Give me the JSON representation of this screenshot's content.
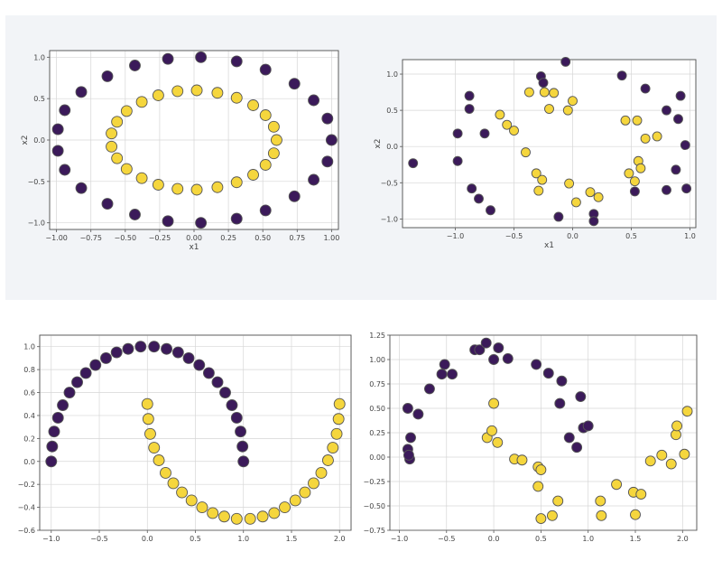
{
  "colors": {
    "class0": "#3b1a5a",
    "class1": "#f5d63d"
  },
  "chart_data": [
    {
      "type": "scatter",
      "title": "",
      "xlabel": "x1",
      "ylabel": "x2",
      "xlim": [
        -1.05,
        1.05
      ],
      "ylim": [
        -1.08,
        1.08
      ],
      "xticks": [
        -1.0,
        -0.75,
        -0.5,
        -0.25,
        0.0,
        0.25,
        0.5,
        0.75,
        1.0
      ],
      "yticks": [
        -1.0,
        -0.5,
        0.0,
        0.5,
        1.0
      ],
      "xtick_labels": [
        "−1.00",
        "−0.75",
        "−0.50",
        "−0.25",
        "0.00",
        "0.25",
        "0.50",
        "0.75",
        "1.00"
      ],
      "ytick_labels": [
        "−1.0",
        "−0.5",
        "0.0",
        "0.5",
        "1.0"
      ],
      "grid": true,
      "series": [
        {
          "class": 0,
          "points": [
            [
              1.0,
              0.0
            ],
            [
              0.97,
              0.26
            ],
            [
              0.87,
              0.48
            ],
            [
              0.73,
              0.68
            ],
            [
              0.52,
              0.85
            ],
            [
              0.31,
              0.95
            ],
            [
              0.05,
              1.0
            ],
            [
              -0.19,
              0.98
            ],
            [
              -0.43,
              0.9
            ],
            [
              -0.63,
              0.77
            ],
            [
              -0.82,
              0.58
            ],
            [
              -0.94,
              0.36
            ],
            [
              -0.99,
              0.13
            ],
            [
              -0.99,
              -0.13
            ],
            [
              -0.94,
              -0.36
            ],
            [
              -0.82,
              -0.58
            ],
            [
              -0.63,
              -0.77
            ],
            [
              -0.43,
              -0.9
            ],
            [
              -0.19,
              -0.98
            ],
            [
              0.05,
              -1.0
            ],
            [
              0.31,
              -0.95
            ],
            [
              0.52,
              -0.85
            ],
            [
              0.73,
              -0.68
            ],
            [
              0.87,
              -0.48
            ],
            [
              0.97,
              -0.26
            ]
          ]
        },
        {
          "class": 1,
          "points": [
            [
              0.6,
              0.0
            ],
            [
              0.58,
              0.16
            ],
            [
              0.52,
              0.3
            ],
            [
              0.43,
              0.42
            ],
            [
              0.31,
              0.51
            ],
            [
              0.17,
              0.57
            ],
            [
              0.02,
              0.6
            ],
            [
              -0.12,
              0.59
            ],
            [
              -0.26,
              0.54
            ],
            [
              -0.38,
              0.46
            ],
            [
              -0.49,
              0.35
            ],
            [
              -0.56,
              0.22
            ],
            [
              -0.6,
              0.08
            ],
            [
              -0.6,
              -0.08
            ],
            [
              -0.56,
              -0.22
            ],
            [
              -0.49,
              -0.35
            ],
            [
              -0.38,
              -0.46
            ],
            [
              -0.26,
              -0.54
            ],
            [
              -0.12,
              -0.59
            ],
            [
              0.02,
              -0.6
            ],
            [
              0.17,
              -0.57
            ],
            [
              0.31,
              -0.51
            ],
            [
              0.43,
              -0.42
            ],
            [
              0.52,
              -0.3
            ],
            [
              0.58,
              -0.16
            ]
          ]
        }
      ]
    },
    {
      "type": "scatter",
      "title": "",
      "xlabel": "x1",
      "ylabel": "x2",
      "xlim": [
        -1.45,
        1.05
      ],
      "ylim": [
        -1.12,
        1.2
      ],
      "xticks": [
        -1.0,
        -0.5,
        0.0,
        0.5,
        1.0
      ],
      "yticks": [
        -1.0,
        -0.5,
        0.0,
        0.5,
        1.0
      ],
      "xtick_labels": [
        "−1.0",
        "−0.5",
        "0.0",
        "0.5",
        "1.0"
      ],
      "ytick_labels": [
        "−1.0",
        "−0.5",
        "0.0",
        "0.5",
        "1.0"
      ],
      "grid": true,
      "series": [
        {
          "class": 0,
          "points": [
            [
              -1.36,
              -0.23
            ],
            [
              -0.98,
              0.18
            ],
            [
              -0.98,
              -0.2
            ],
            [
              -0.88,
              0.7
            ],
            [
              -0.88,
              0.52
            ],
            [
              -0.86,
              -0.58
            ],
            [
              -0.8,
              -0.72
            ],
            [
              -0.75,
              0.18
            ],
            [
              -0.7,
              -0.88
            ],
            [
              -0.27,
              0.97
            ],
            [
              -0.25,
              0.88
            ],
            [
              -0.12,
              -0.97
            ],
            [
              -0.06,
              1.17
            ],
            [
              0.18,
              -0.93
            ],
            [
              0.18,
              -1.03
            ],
            [
              0.42,
              0.98
            ],
            [
              0.53,
              -0.62
            ],
            [
              0.62,
              0.8
            ],
            [
              0.8,
              -0.6
            ],
            [
              0.8,
              0.5
            ],
            [
              0.88,
              -0.32
            ],
            [
              0.9,
              0.38
            ],
            [
              0.92,
              0.7
            ],
            [
              0.96,
              0.02
            ],
            [
              0.97,
              -0.58
            ]
          ]
        },
        {
          "class": 1,
          "points": [
            [
              -0.62,
              0.44
            ],
            [
              -0.56,
              0.3
            ],
            [
              -0.5,
              0.22
            ],
            [
              -0.4,
              -0.08
            ],
            [
              -0.37,
              0.75
            ],
            [
              -0.31,
              -0.37
            ],
            [
              -0.29,
              -0.61
            ],
            [
              -0.26,
              -0.46
            ],
            [
              -0.24,
              0.75
            ],
            [
              -0.2,
              0.52
            ],
            [
              -0.16,
              0.74
            ],
            [
              -0.04,
              0.5
            ],
            [
              -0.03,
              -0.51
            ],
            [
              0.0,
              0.63
            ],
            [
              0.03,
              -0.77
            ],
            [
              0.15,
              -0.63
            ],
            [
              0.22,
              -0.7
            ],
            [
              0.45,
              0.36
            ],
            [
              0.48,
              -0.37
            ],
            [
              0.53,
              -0.48
            ],
            [
              0.55,
              0.36
            ],
            [
              0.56,
              -0.2
            ],
            [
              0.58,
              -0.3
            ],
            [
              0.62,
              0.11
            ],
            [
              0.72,
              0.14
            ]
          ]
        }
      ]
    },
    {
      "type": "scatter",
      "title": "",
      "xlabel": "",
      "ylabel": "",
      "xlim": [
        -1.12,
        2.12
      ],
      "ylim": [
        -0.6,
        1.1
      ],
      "xticks": [
        -1.0,
        -0.5,
        0.0,
        0.5,
        1.0,
        1.5,
        2.0
      ],
      "yticks": [
        -0.6,
        -0.4,
        -0.2,
        0.0,
        0.2,
        0.4,
        0.6,
        0.8,
        1.0
      ],
      "xtick_labels": [
        "−1.0",
        "−0.5",
        "0.0",
        "0.5",
        "1.0",
        "1.5",
        "2.0"
      ],
      "ytick_labels": [
        "−0.6",
        "−0.4",
        "−0.2",
        "0.0",
        "0.2",
        "0.4",
        "0.6",
        "0.8",
        "1.0"
      ],
      "grid": true,
      "series": [
        {
          "class": 0,
          "points": [
            [
              -1.0,
              0.0
            ],
            [
              -0.99,
              0.13
            ],
            [
              -0.97,
              0.26
            ],
            [
              -0.93,
              0.38
            ],
            [
              -0.88,
              0.49
            ],
            [
              -0.81,
              0.6
            ],
            [
              -0.73,
              0.69
            ],
            [
              -0.64,
              0.77
            ],
            [
              -0.54,
              0.84
            ],
            [
              -0.43,
              0.9
            ],
            [
              -0.32,
              0.95
            ],
            [
              -0.2,
              0.98
            ],
            [
              -0.07,
              1.0
            ],
            [
              0.07,
              1.0
            ],
            [
              0.2,
              0.98
            ],
            [
              0.32,
              0.95
            ],
            [
              0.43,
              0.9
            ],
            [
              0.54,
              0.84
            ],
            [
              0.64,
              0.77
            ],
            [
              0.73,
              0.69
            ],
            [
              0.81,
              0.6
            ],
            [
              0.88,
              0.49
            ],
            [
              0.93,
              0.38
            ],
            [
              0.97,
              0.26
            ],
            [
              0.99,
              0.13
            ],
            [
              1.0,
              0.0
            ]
          ]
        },
        {
          "class": 1,
          "points": [
            [
              0.0,
              0.5
            ],
            [
              0.01,
              0.37
            ],
            [
              0.03,
              0.24
            ],
            [
              0.07,
              0.12
            ],
            [
              0.12,
              0.01
            ],
            [
              0.19,
              -0.1
            ],
            [
              0.27,
              -0.19
            ],
            [
              0.36,
              -0.27
            ],
            [
              0.46,
              -0.34
            ],
            [
              0.57,
              -0.4
            ],
            [
              0.68,
              -0.45
            ],
            [
              0.8,
              -0.48
            ],
            [
              0.93,
              -0.5
            ],
            [
              1.07,
              -0.5
            ],
            [
              1.2,
              -0.48
            ],
            [
              1.32,
              -0.45
            ],
            [
              1.43,
              -0.4
            ],
            [
              1.54,
              -0.34
            ],
            [
              1.64,
              -0.27
            ],
            [
              1.73,
              -0.19
            ],
            [
              1.81,
              -0.1
            ],
            [
              1.88,
              0.01
            ],
            [
              1.93,
              0.12
            ],
            [
              1.97,
              0.24
            ],
            [
              1.99,
              0.37
            ],
            [
              2.0,
              0.5
            ]
          ]
        }
      ]
    },
    {
      "type": "scatter",
      "title": "",
      "xlabel": "",
      "ylabel": "",
      "xlim": [
        -1.1,
        2.15
      ],
      "ylim": [
        -0.75,
        1.25
      ],
      "xticks": [
        -1.0,
        -0.5,
        0.0,
        0.5,
        1.0,
        1.5,
        2.0
      ],
      "yticks": [
        -0.75,
        -0.5,
        -0.25,
        0.0,
        0.25,
        0.5,
        0.75,
        1.0,
        1.25
      ],
      "xtick_labels": [
        "−1.0",
        "−0.5",
        "0.0",
        "0.5",
        "1.0",
        "1.5",
        "2.0"
      ],
      "ytick_labels": [
        "−0.75",
        "−0.50",
        "−0.25",
        "0.00",
        "0.25",
        "0.50",
        "0.75",
        "1.00",
        "1.25"
      ],
      "grid": true,
      "series": [
        {
          "class": 0,
          "points": [
            [
              -0.91,
              0.5
            ],
            [
              -0.91,
              0.08
            ],
            [
              -0.89,
              -0.02
            ],
            [
              -0.88,
              0.2
            ],
            [
              -0.8,
              0.44
            ],
            [
              -0.68,
              0.7
            ],
            [
              -0.55,
              0.85
            ],
            [
              -0.52,
              0.95
            ],
            [
              -0.44,
              0.85
            ],
            [
              -0.2,
              1.1
            ],
            [
              -0.15,
              1.1
            ],
            [
              -0.08,
              1.17
            ],
            [
              0.0,
              1.0
            ],
            [
              0.15,
              1.01
            ],
            [
              0.45,
              0.95
            ],
            [
              0.58,
              0.86
            ],
            [
              0.72,
              0.78
            ],
            [
              0.7,
              0.55
            ],
            [
              0.8,
              0.2
            ],
            [
              0.88,
              0.1
            ],
            [
              0.92,
              0.62
            ],
            [
              0.95,
              0.3
            ],
            [
              1.0,
              0.32
            ],
            [
              0.05,
              1.12
            ],
            [
              -0.9,
              0.02
            ]
          ]
        },
        {
          "class": 1,
          "points": [
            [
              -0.07,
              0.2
            ],
            [
              -0.02,
              0.27
            ],
            [
              0.0,
              0.55
            ],
            [
              0.04,
              0.15
            ],
            [
              0.22,
              -0.02
            ],
            [
              0.3,
              -0.03
            ],
            [
              0.47,
              -0.1
            ],
            [
              0.5,
              -0.13
            ],
            [
              0.47,
              -0.3
            ],
            [
              0.5,
              -0.63
            ],
            [
              0.62,
              -0.6
            ],
            [
              0.68,
              -0.45
            ],
            [
              1.13,
              -0.45
            ],
            [
              1.14,
              -0.6
            ],
            [
              1.3,
              -0.28
            ],
            [
              1.48,
              -0.36
            ],
            [
              1.5,
              -0.59
            ],
            [
              1.56,
              -0.38
            ],
            [
              1.66,
              -0.04
            ],
            [
              1.78,
              0.02
            ],
            [
              1.88,
              -0.07
            ],
            [
              1.93,
              0.23
            ],
            [
              1.94,
              0.32
            ],
            [
              2.02,
              0.03
            ],
            [
              2.05,
              0.47
            ]
          ]
        }
      ]
    }
  ]
}
